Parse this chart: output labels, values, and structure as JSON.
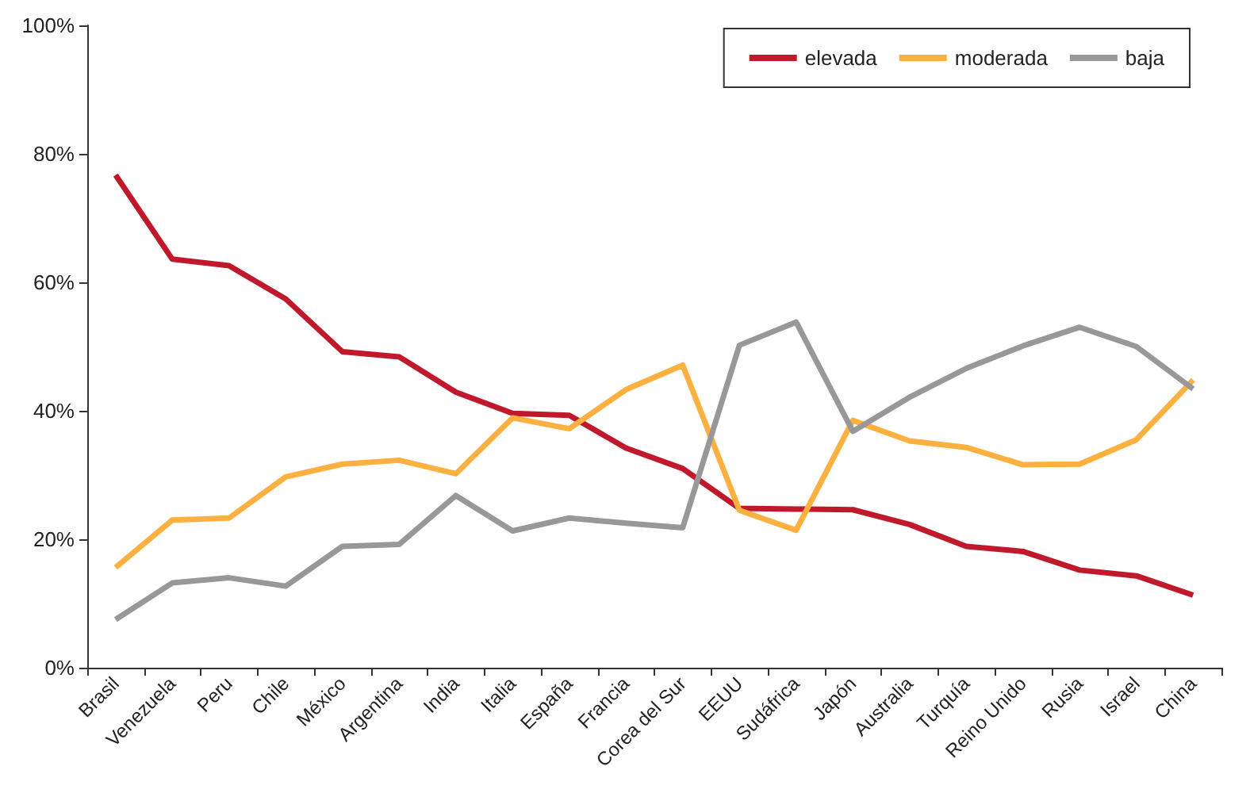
{
  "chart_data": {
    "type": "line",
    "categories": [
      "Brasil",
      "Venezuela",
      "Peru",
      "Chile",
      "México",
      "Argentina",
      "India",
      "Italia",
      "España",
      "Francia",
      "Corea del Sur",
      "EEUU",
      "Sudáfrica",
      "Japón",
      "Australia",
      "Turquía",
      "Reino Unido",
      "Rusia",
      "Israel",
      "China"
    ],
    "series": [
      {
        "name": "elevada",
        "color": "#c0192c",
        "values": [
          76.7,
          63.6,
          62.6,
          57.4,
          49.2,
          48.4,
          42.9,
          39.6,
          39.3,
          34.2,
          31,
          24.8,
          24.7,
          24.6,
          22.3,
          18.9,
          18.1,
          15.2,
          14.3,
          11.3
        ]
      },
      {
        "name": "moderada",
        "color": "#fbb040",
        "values": [
          15.6,
          23,
          23.3,
          29.7,
          31.7,
          32.3,
          30.2,
          38.9,
          37.2,
          43.3,
          47.1,
          24.5,
          21.4,
          38.5,
          35.3,
          34.3,
          31.6,
          31.7,
          35.5,
          44.8
        ]
      },
      {
        "name": "baja",
        "color": "#98989b",
        "values": [
          7.5,
          13.2,
          14,
          12.7,
          18.9,
          19.2,
          26.8,
          21.3,
          23.3,
          22.5,
          21.8,
          50.2,
          53.8,
          36.8,
          42.1,
          46.6,
          50.1,
          53,
          50,
          43.4
        ]
      }
    ],
    "ylim": [
      0,
      100
    ],
    "yticks": [
      {
        "value": 0,
        "label": "0%"
      },
      {
        "value": 20,
        "label": "20%"
      },
      {
        "value": 40,
        "label": "40%"
      },
      {
        "value": 60,
        "label": "60%"
      },
      {
        "value": 80,
        "label": "80%"
      },
      {
        "value": 100,
        "label": "100%"
      }
    ],
    "grid": false,
    "legend": "top right",
    "marker": "none",
    "line_style": "solid"
  }
}
